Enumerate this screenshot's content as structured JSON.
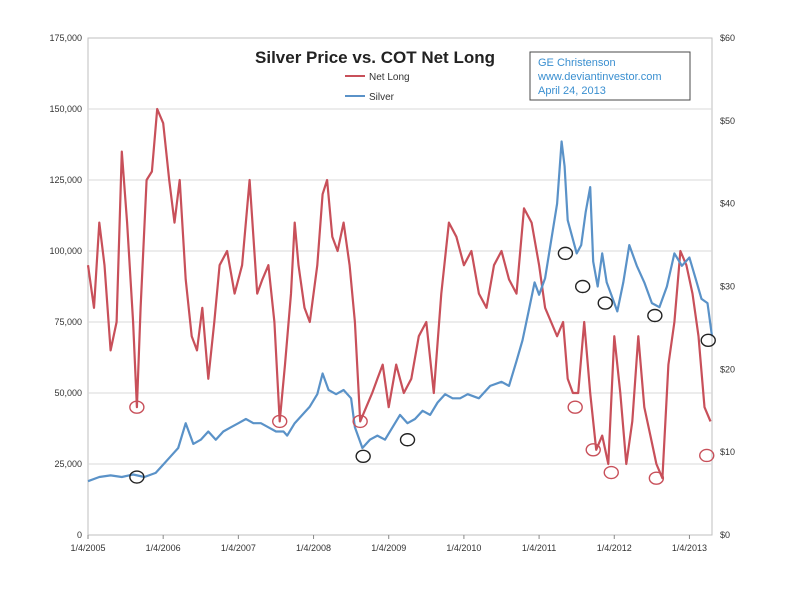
{
  "chart_data": {
    "type": "line",
    "title": "Silver Price vs. COT Net Long",
    "annotation": {
      "lines": [
        "GE Christenson",
        "www.deviantinvestor.com",
        "April 24, 2013"
      ]
    },
    "legend": {
      "placement": "top-center",
      "entries": [
        "Net Long",
        "Silver"
      ]
    },
    "x_axis": {
      "tick_labels": [
        "1/4/2005",
        "1/4/2006",
        "1/4/2007",
        "1/4/2008",
        "1/4/2009",
        "1/4/2010",
        "1/4/2011",
        "1/4/2012",
        "1/4/2013"
      ],
      "range": [
        2005.0,
        2013.3
      ]
    },
    "y_left": {
      "range": [
        0,
        175000
      ],
      "tick_labels": [
        "0",
        "25,000",
        "50,000",
        "75,000",
        "100,000",
        "125,000",
        "150,000",
        "175,000"
      ],
      "ticks": [
        0,
        25000,
        50000,
        75000,
        100000,
        125000,
        150000,
        175000
      ]
    },
    "y_right": {
      "range": [
        0,
        60
      ],
      "tick_labels": [
        "$0",
        "$10",
        "$20",
        "$30",
        "$40",
        "$50",
        "$60"
      ],
      "ticks": [
        0,
        10,
        20,
        30,
        40,
        50,
        60
      ]
    },
    "series": [
      {
        "name": "Net Long",
        "axis": "left",
        "color": "#c8505a",
        "x": [
          2005.0,
          2005.08,
          2005.15,
          2005.22,
          2005.3,
          2005.38,
          2005.45,
          2005.52,
          2005.6,
          2005.65,
          2005.7,
          2005.78,
          2005.85,
          2005.92,
          2006.0,
          2006.08,
          2006.15,
          2006.22,
          2006.3,
          2006.38,
          2006.45,
          2006.52,
          2006.6,
          2006.68,
          2006.75,
          2006.85,
          2006.95,
          2007.05,
          2007.15,
          2007.25,
          2007.32,
          2007.4,
          2007.48,
          2007.55,
          2007.62,
          2007.7,
          2007.75,
          2007.8,
          2007.88,
          2007.95,
          2008.05,
          2008.12,
          2008.18,
          2008.25,
          2008.32,
          2008.4,
          2008.48,
          2008.55,
          2008.62,
          2008.7,
          2008.78,
          2008.85,
          2008.92,
          2009.0,
          2009.1,
          2009.2,
          2009.3,
          2009.4,
          2009.5,
          2009.6,
          2009.7,
          2009.8,
          2009.9,
          2010.0,
          2010.1,
          2010.2,
          2010.3,
          2010.4,
          2010.5,
          2010.6,
          2010.7,
          2010.8,
          2010.9,
          2011.0,
          2011.08,
          2011.16,
          2011.24,
          2011.32,
          2011.38,
          2011.45,
          2011.52,
          2011.6,
          2011.68,
          2011.76,
          2011.84,
          2011.92,
          2012.0,
          2012.08,
          2012.16,
          2012.24,
          2012.32,
          2012.4,
          2012.48,
          2012.56,
          2012.64,
          2012.72,
          2012.8,
          2012.88,
          2012.96,
          2013.04,
          2013.12,
          2013.2,
          2013.28
        ],
        "values": [
          95000,
          80000,
          110000,
          95000,
          65000,
          75000,
          135000,
          110000,
          75000,
          45000,
          80000,
          125000,
          128000,
          150000,
          145000,
          125000,
          110000,
          125000,
          90000,
          70000,
          65000,
          80000,
          55000,
          75000,
          95000,
          100000,
          85000,
          95000,
          125000,
          85000,
          90000,
          95000,
          75000,
          40000,
          60000,
          85000,
          110000,
          95000,
          80000,
          75000,
          95000,
          120000,
          125000,
          105000,
          100000,
          110000,
          95000,
          75000,
          40000,
          45000,
          50000,
          55000,
          60000,
          45000,
          60000,
          50000,
          55000,
          70000,
          75000,
          50000,
          85000,
          110000,
          105000,
          95000,
          100000,
          85000,
          80000,
          95000,
          100000,
          90000,
          85000,
          115000,
          110000,
          95000,
          80000,
          75000,
          70000,
          75000,
          55000,
          50000,
          50000,
          75000,
          50000,
          30000,
          35000,
          25000,
          70000,
          50000,
          25000,
          40000,
          70000,
          45000,
          35000,
          25000,
          20000,
          60000,
          75000,
          100000,
          95000,
          85000,
          70000,
          45000,
          40000
        ]
      },
      {
        "name": "Silver",
        "axis": "right",
        "color": "#5a92c8",
        "x": [
          2005.0,
          2005.15,
          2005.3,
          2005.45,
          2005.6,
          2005.75,
          2005.9,
          2006.0,
          2006.1,
          2006.2,
          2006.3,
          2006.4,
          2006.5,
          2006.6,
          2006.7,
          2006.8,
          2006.9,
          2007.0,
          2007.1,
          2007.2,
          2007.3,
          2007.4,
          2007.5,
          2007.6,
          2007.65,
          2007.75,
          2007.85,
          2007.95,
          2008.05,
          2008.12,
          2008.2,
          2008.3,
          2008.4,
          2008.5,
          2008.55,
          2008.65,
          2008.75,
          2008.85,
          2008.95,
          2009.05,
          2009.15,
          2009.25,
          2009.35,
          2009.45,
          2009.55,
          2009.65,
          2009.75,
          2009.85,
          2009.95,
          2010.05,
          2010.2,
          2010.35,
          2010.5,
          2010.6,
          2010.7,
          2010.78,
          2010.86,
          2010.94,
          2011.0,
          2011.08,
          2011.16,
          2011.24,
          2011.3,
          2011.34,
          2011.38,
          2011.44,
          2011.5,
          2011.56,
          2011.62,
          2011.68,
          2011.72,
          2011.78,
          2011.84,
          2011.9,
          2011.96,
          2012.04,
          2012.12,
          2012.2,
          2012.3,
          2012.4,
          2012.5,
          2012.6,
          2012.7,
          2012.8,
          2012.9,
          2013.0,
          2013.08,
          2013.16,
          2013.24,
          2013.3
        ],
        "values": [
          6.5,
          7.0,
          7.2,
          7.0,
          7.3,
          7.0,
          7.5,
          8.5,
          9.5,
          10.5,
          13.5,
          11.0,
          11.5,
          12.5,
          11.5,
          12.5,
          13.0,
          13.5,
          14.0,
          13.5,
          13.5,
          13.0,
          12.5,
          12.5,
          12.0,
          13.5,
          14.5,
          15.5,
          17.0,
          19.5,
          17.5,
          17.0,
          17.5,
          16.5,
          13.0,
          10.5,
          11.5,
          12.0,
          11.5,
          13.0,
          14.5,
          13.5,
          14.0,
          15.0,
          14.5,
          16.0,
          17.0,
          16.5,
          16.5,
          17.0,
          16.5,
          18.0,
          18.5,
          18.0,
          21.0,
          23.5,
          27.0,
          30.5,
          29.0,
          31.0,
          35.5,
          40.0,
          47.5,
          44.5,
          38.0,
          36.0,
          34.0,
          35.0,
          39.0,
          42.0,
          33.0,
          30.0,
          34.0,
          30.5,
          29.0,
          27.0,
          30.5,
          35.0,
          32.5,
          30.5,
          28.0,
          27.5,
          30.0,
          34.0,
          32.5,
          33.5,
          31.0,
          28.5,
          28.0,
          24.0
        ]
      }
    ],
    "circled_points": [
      {
        "series": "Net Long",
        "x": 2005.65,
        "value": 45000
      },
      {
        "series": "Silver",
        "x": 2005.65,
        "value": 7.0
      },
      {
        "series": "Net Long",
        "x": 2007.55,
        "value": 40000
      },
      {
        "series": "Net Long",
        "x": 2008.62,
        "value": 40000
      },
      {
        "series": "Silver",
        "x": 2008.66,
        "value": 9.5
      },
      {
        "series": "Silver",
        "x": 2009.25,
        "value": 11.5
      },
      {
        "series": "Silver",
        "x": 2011.35,
        "value": 34.0
      },
      {
        "series": "Net Long",
        "x": 2011.48,
        "value": 45000
      },
      {
        "series": "Silver",
        "x": 2011.58,
        "value": 30.0
      },
      {
        "series": "Net Long",
        "x": 2011.72,
        "value": 30000
      },
      {
        "series": "Silver",
        "x": 2011.88,
        "value": 28.0
      },
      {
        "series": "Net Long",
        "x": 2011.96,
        "value": 22000
      },
      {
        "series": "Silver",
        "x": 2012.54,
        "value": 26.5
      },
      {
        "series": "Net Long",
        "x": 2012.56,
        "value": 20000
      },
      {
        "series": "Silver",
        "x": 2013.25,
        "value": 23.5
      },
      {
        "series": "Net Long",
        "x": 2013.23,
        "value": 28000
      }
    ]
  }
}
